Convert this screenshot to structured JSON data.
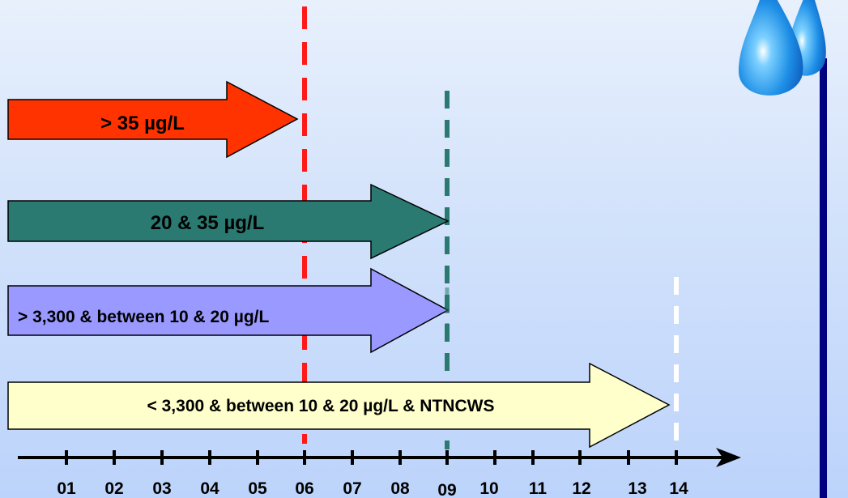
{
  "colors": {
    "background_top": "#e8f0fc",
    "background_bottom": "#bcd3fb",
    "red": "#ff3300",
    "teal": "#2a7a72",
    "lavender": "#9999ff",
    "pale_yellow": "#ffffcc",
    "pole": "#000080",
    "drop": "#1e8fe6"
  },
  "timeline": {
    "labels": [
      "01",
      "02",
      "03",
      "04",
      "05",
      "06",
      "07",
      "08",
      "09",
      "10",
      "11",
      "12",
      "13",
      "14"
    ]
  },
  "arrows": [
    {
      "id": "arrow-gt-35",
      "label": "> 35 µg/L",
      "color": "red",
      "end_year": "06"
    },
    {
      "id": "arrow-20-35",
      "label": "20 & 35 µg/L",
      "color": "teal",
      "end_year": "09"
    },
    {
      "id": "arrow-gt-3300",
      "label": "> 3,300 & between 10 & 20 µg/L",
      "color": "lavender",
      "end_year": "09"
    },
    {
      "id": "arrow-lt-3300",
      "label": "< 3,300 & between 10 & 20 µg/L & NTNCWS",
      "color": "pale_yellow",
      "end_year": "14"
    }
  ],
  "deadlines": [
    {
      "year": "06",
      "color": "red"
    },
    {
      "year": "09",
      "color": "teal"
    },
    {
      "year": "14",
      "color": "white"
    }
  ],
  "decoration": {
    "icon": "water-drops-icon"
  }
}
